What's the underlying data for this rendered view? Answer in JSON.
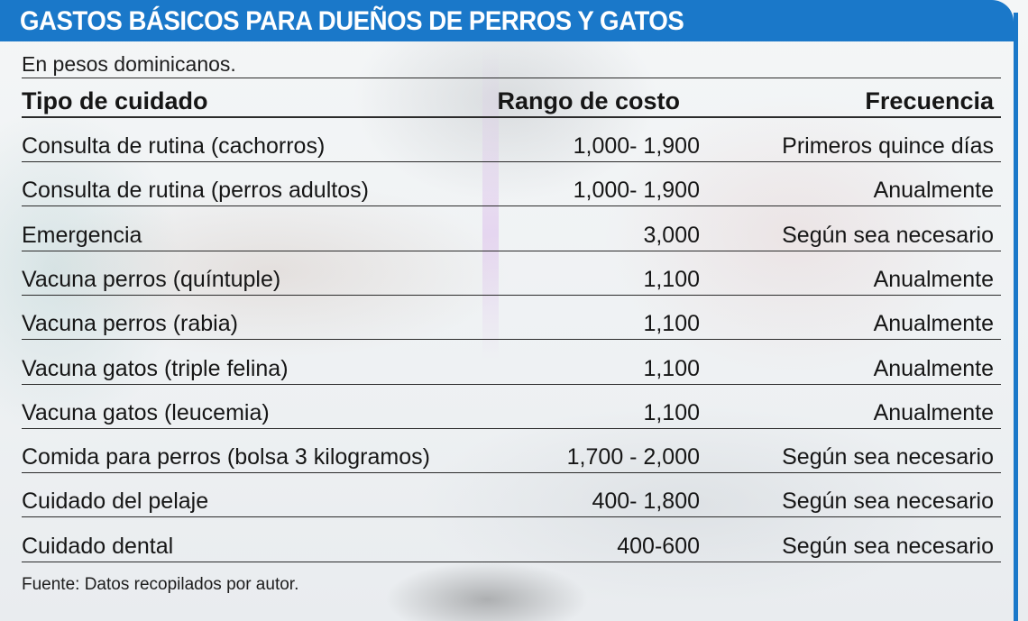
{
  "chart_data": {
    "type": "table",
    "title": "GASTOS BÁSICOS PARA DUEÑOS DE PERROS Y GATOS",
    "subtitle": "En pesos dominicanos.",
    "columns": [
      "Tipo de cuidado",
      "Rango de costo",
      "Frecuencia"
    ],
    "rows": [
      [
        "Consulta de rutina (cachorros)",
        "1,000- 1,900",
        "Primeros quince días"
      ],
      [
        "Consulta de rutina (perros adultos)",
        "1,000- 1,900",
        "Anualmente"
      ],
      [
        "Emergencia",
        "3,000",
        "Según sea necesario"
      ],
      [
        "Vacuna perros (quíntuple)",
        "1,100",
        "Anualmente"
      ],
      [
        "Vacuna perros (rabia)",
        "1,100",
        "Anualmente"
      ],
      [
        "Vacuna gatos (triple felina)",
        "1,100",
        "Anualmente"
      ],
      [
        "Vacuna gatos (leucemia)",
        "1,100",
        "Anualmente"
      ],
      [
        "Comida para perros (bolsa 3 kilogramos)",
        "1,700 - 2,000",
        "Según sea necesario"
      ],
      [
        "Cuidado del pelaje",
        "400- 1,800",
        "Según sea necesario"
      ],
      [
        "Cuidado dental",
        "400-600",
        "Según sea necesario"
      ]
    ],
    "source": "Fuente: Datos recopilados por autor."
  },
  "colors": {
    "header_bar": "#1a78c9",
    "title_text": "#ffffff",
    "body_text": "#161616"
  }
}
